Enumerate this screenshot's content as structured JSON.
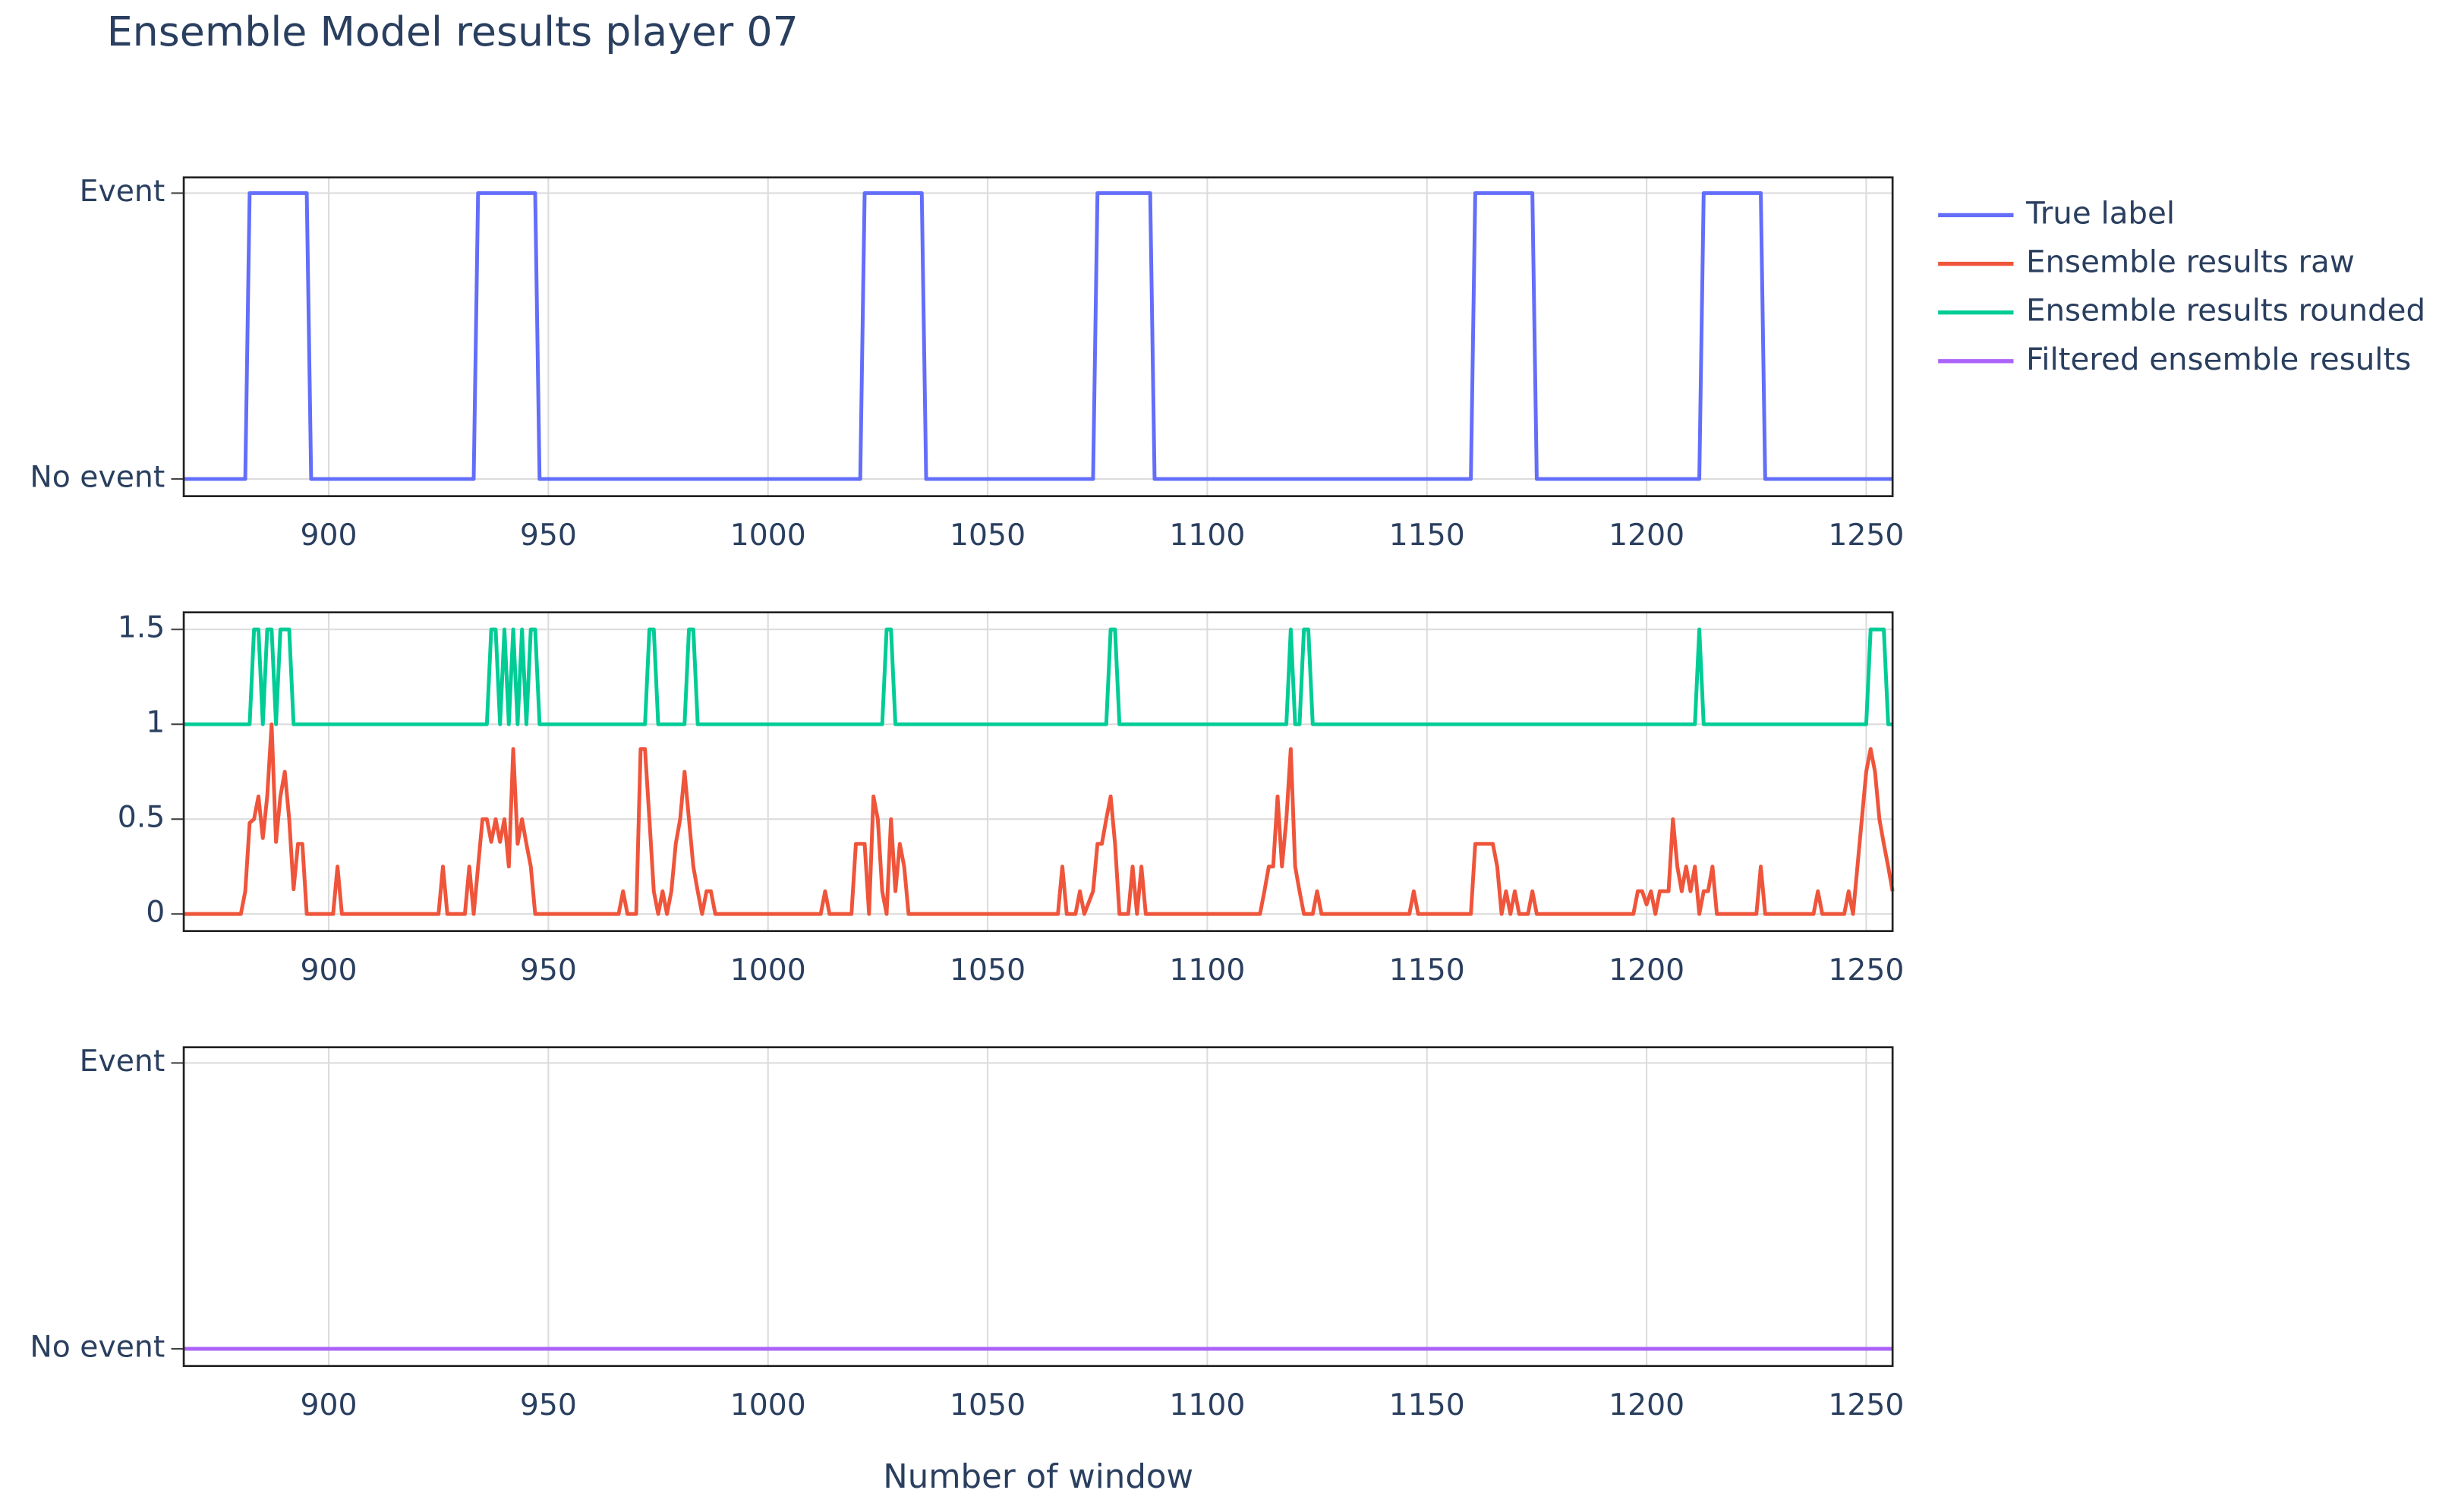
{
  "chart_data": [
    {
      "type": "line",
      "title": "Ensemble Model results player 07",
      "grid": true,
      "xlim": [
        867,
        1256
      ],
      "xticks": [
        900,
        950,
        1000,
        1050,
        1100,
        1150,
        1200,
        1250
      ],
      "ylim": [
        -0.06,
        1.055
      ],
      "yticks": [
        {
          "value": 0,
          "label": "No event"
        },
        {
          "value": 1,
          "label": "Event"
        }
      ],
      "series": [
        {
          "name": "True label",
          "color": "#636efa",
          "x": [
            867,
            881,
            882,
            895,
            896,
            933,
            934,
            947,
            948,
            1021,
            1022,
            1035,
            1036,
            1074,
            1075,
            1087,
            1088,
            1160,
            1161,
            1174,
            1175,
            1212,
            1213,
            1226,
            1227,
            1256
          ],
          "values": [
            0,
            0,
            1,
            1,
            0,
            0,
            1,
            1,
            0,
            0,
            1,
            1,
            0,
            0,
            1,
            1,
            0,
            0,
            1,
            1,
            0,
            0,
            1,
            1,
            0,
            0
          ]
        }
      ]
    },
    {
      "type": "line",
      "grid": true,
      "xlim": [
        867,
        1256
      ],
      "xticks": [
        900,
        950,
        1000,
        1050,
        1100,
        1150,
        1200,
        1250
      ],
      "ylim": [
        -0.09,
        1.59
      ],
      "yticks": [
        0,
        0.5,
        1,
        1.5
      ],
      "series": [
        {
          "name": "Ensemble results raw",
          "color": "#ef553b",
          "x": [
            867,
            880,
            881,
            882,
            883,
            884,
            885,
            886,
            887,
            888,
            889,
            890,
            891,
            892,
            893,
            894,
            895,
            901,
            902,
            903,
            925,
            926,
            927,
            931,
            932,
            933,
            934,
            935,
            936,
            937,
            938,
            939,
            940,
            941,
            942,
            943,
            944,
            945,
            946,
            947,
            966,
            967,
            968,
            970,
            971,
            972,
            973,
            974,
            975,
            976,
            977,
            978,
            979,
            980,
            981,
            982,
            983,
            984,
            985,
            986,
            987,
            988,
            1012,
            1013,
            1014,
            1019,
            1020,
            1021,
            1022,
            1023,
            1024,
            1025,
            1026,
            1027,
            1028,
            1029,
            1030,
            1031,
            1032,
            1066,
            1067,
            1068,
            1070,
            1071,
            1072,
            1074,
            1075,
            1076,
            1077,
            1078,
            1079,
            1080,
            1082,
            1083,
            1084,
            1085,
            1086,
            1112,
            1113,
            1114,
            1115,
            1116,
            1117,
            1118,
            1119,
            1120,
            1121,
            1122,
            1124,
            1125,
            1126,
            1146,
            1147,
            1148,
            1160,
            1161,
            1165,
            1166,
            1167,
            1168,
            1169,
            1170,
            1171,
            1173,
            1174,
            1175,
            1197,
            1198,
            1199,
            1200,
            1201,
            1202,
            1203,
            1204,
            1205,
            1206,
            1207,
            1208,
            1209,
            1210,
            1211,
            1212,
            1213,
            1214,
            1215,
            1216,
            1225,
            1226,
            1227,
            1238,
            1239,
            1240,
            1245,
            1246,
            1247,
            1248,
            1249,
            1250,
            1251,
            1252,
            1253,
            1254,
            1255,
            1256
          ],
          "values": [
            0,
            0,
            0.12,
            0.48,
            0.5,
            0.62,
            0.4,
            0.62,
            1.0,
            0.38,
            0.62,
            0.75,
            0.5,
            0.13,
            0.37,
            0.37,
            0,
            0,
            0.25,
            0,
            0,
            0.25,
            0,
            0,
            0.25,
            0,
            0.25,
            0.5,
            0.5,
            0.38,
            0.5,
            0.38,
            0.5,
            0.25,
            0.87,
            0.37,
            0.5,
            0.37,
            0.25,
            0,
            0,
            0.12,
            0,
            0,
            0.87,
            0.87,
            0.5,
            0.12,
            0,
            0.12,
            0,
            0.12,
            0.37,
            0.5,
            0.75,
            0.5,
            0.25,
            0.12,
            0,
            0.12,
            0.12,
            0,
            0,
            0.12,
            0,
            0,
            0.37,
            0.37,
            0.37,
            0,
            0.62,
            0.5,
            0.12,
            0,
            0.5,
            0.12,
            0.37,
            0.25,
            0,
            0,
            0.25,
            0,
            0,
            0.12,
            0,
            0.12,
            0.37,
            0.37,
            0.5,
            0.62,
            0.37,
            0,
            0,
            0.25,
            0,
            0.25,
            0,
            0,
            0.12,
            0.25,
            0.25,
            0.62,
            0.25,
            0.5,
            0.87,
            0.25,
            0.12,
            0,
            0,
            0.12,
            0,
            0,
            0.12,
            0,
            0,
            0.37,
            0.37,
            0.25,
            0,
            0.12,
            0,
            0.12,
            0,
            0,
            0.12,
            0,
            0,
            0.12,
            0.12,
            0.05,
            0.12,
            0,
            0.12,
            0.12,
            0.12,
            0.5,
            0.25,
            0.12,
            0.25,
            0.12,
            0.25,
            0,
            0.12,
            0.12,
            0.25,
            0,
            0,
            0.25,
            0,
            0,
            0.12,
            0,
            0,
            0.12,
            0,
            0.25,
            0.5,
            0.75,
            0.87,
            0.75,
            0.5,
            0.37,
            0.25,
            0.12
          ]
        },
        {
          "name": "Ensemble results rounded",
          "color": "#00cc96",
          "x": [
            867,
            882,
            883,
            884,
            885,
            886,
            887,
            888,
            889,
            891,
            892,
            936,
            937,
            938,
            939,
            940,
            941,
            942,
            943,
            944,
            945,
            946,
            947,
            948,
            972,
            973,
            974,
            975,
            981,
            982,
            983,
            984,
            1026,
            1027,
            1028,
            1029,
            1077,
            1078,
            1079,
            1080,
            1118,
            1119,
            1120,
            1121,
            1122,
            1123,
            1124,
            1211,
            1212,
            1213,
            1250,
            1251,
            1254,
            1255,
            1256
          ],
          "values": [
            1,
            1,
            1.5,
            1.5,
            1,
            1.5,
            1.5,
            1,
            1.5,
            1.5,
            1,
            1,
            1.5,
            1.5,
            1,
            1.5,
            1,
            1.5,
            1,
            1.5,
            1,
            1.5,
            1.5,
            1,
            1,
            1.5,
            1.5,
            1,
            1,
            1.5,
            1.5,
            1,
            1,
            1.5,
            1.5,
            1,
            1,
            1.5,
            1.5,
            1,
            1,
            1.5,
            1,
            1,
            1.5,
            1.5,
            1,
            1,
            1.5,
            1,
            1,
            1.5,
            1.5,
            1,
            1
          ]
        }
      ]
    },
    {
      "type": "line",
      "grid": true,
      "x_label": "Number of window",
      "xlim": [
        867,
        1256
      ],
      "xticks": [
        900,
        950,
        1000,
        1050,
        1100,
        1150,
        1200,
        1250
      ],
      "ylim": [
        -0.06,
        1.055
      ],
      "yticks": [
        {
          "value": 0,
          "label": "No event"
        },
        {
          "value": 1,
          "label": "Event"
        }
      ],
      "series": [
        {
          "name": "Filtered ensemble results",
          "color": "#ab63fa",
          "x": [
            867,
            1256
          ],
          "values": [
            0,
            0
          ]
        }
      ]
    }
  ]
}
